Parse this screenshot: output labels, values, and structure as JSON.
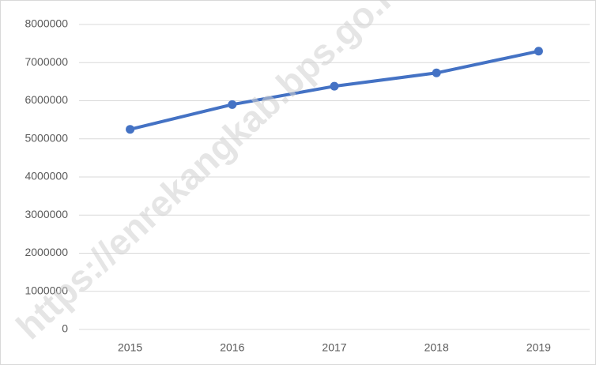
{
  "chart_data": {
    "type": "line",
    "categories": [
      "2015",
      "2016",
      "2017",
      "2018",
      "2019"
    ],
    "series": [
      {
        "color": "#4472c4",
        "values": [
          5250000,
          5900000,
          6380000,
          6730000,
          7300000
        ]
      }
    ],
    "ylim": [
      0,
      8000000
    ],
    "yticks": [
      0,
      1000000,
      2000000,
      3000000,
      4000000,
      5000000,
      6000000,
      7000000,
      8000000
    ],
    "grid": true,
    "watermark": "https://enrekangkab.bps.go.id"
  }
}
